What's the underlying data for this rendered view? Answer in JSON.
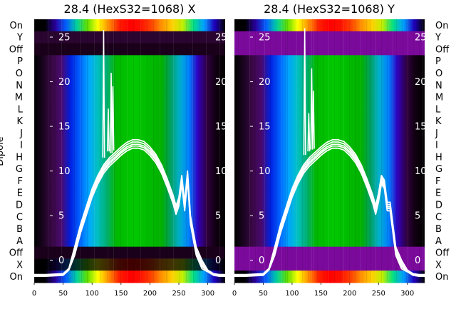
{
  "figure": {
    "ylabel": "Dipole",
    "panels": [
      {
        "title": "28.4 (HexS32=1068) X",
        "variant": "X"
      },
      {
        "title": "28.4 (HexS32=1068) Y",
        "variant": "Y"
      }
    ]
  },
  "chart_data": [
    {
      "type": "heatmap",
      "title": "28.4 (HexS32=1068) X",
      "ylabel": "Dipole",
      "row_labels": [
        "On",
        "Y",
        "Off",
        "P",
        "O",
        "N",
        "M",
        "L",
        "K",
        "J",
        "I",
        "H",
        "G",
        "F",
        "E",
        "D",
        "C",
        "B",
        "A",
        "Off",
        "X",
        "On"
      ],
      "x_ticks": [
        0,
        50,
        100,
        150,
        200,
        250,
        300
      ],
      "xlim": [
        0,
        330
      ],
      "overlay_line": {
        "y_ticks": [
          0,
          5,
          10,
          15,
          20,
          25
        ],
        "ylim": [
          -2.5,
          27
        ],
        "x": [
          0,
          20,
          50,
          60,
          70,
          80,
          90,
          100,
          110,
          120,
          130,
          140,
          150,
          160,
          170,
          180,
          190,
          200,
          210,
          220,
          230,
          240,
          245,
          250,
          255,
          260,
          265,
          270,
          280,
          290,
          300,
          310,
          320,
          330
        ],
        "y": [
          -1.7,
          -1.7,
          -1.6,
          -1.0,
          1.0,
          3.5,
          5.5,
          7.5,
          9.0,
          10.2,
          11.0,
          11.6,
          12.2,
          12.7,
          13.0,
          13.0,
          12.8,
          12.2,
          11.4,
          10.2,
          8.6,
          6.8,
          5.6,
          6.5,
          9.0,
          6.0,
          9.5,
          4.5,
          1.0,
          -0.5,
          -1.2,
          -1.6,
          -1.7,
          -1.7
        ]
      }
    },
    {
      "type": "heatmap",
      "title": "28.4 (HexS32=1068) Y",
      "row_labels": [
        "On",
        "Y",
        "Off",
        "P",
        "O",
        "N",
        "M",
        "L",
        "K",
        "J",
        "I",
        "H",
        "G",
        "F",
        "E",
        "D",
        "C",
        "B",
        "A",
        "Off",
        "X",
        "On"
      ],
      "x_ticks": [
        0,
        50,
        100,
        150,
        200,
        250,
        300
      ],
      "xlim": [
        0,
        330
      ],
      "overlay_line": {
        "y_ticks": [
          0,
          5,
          10,
          15,
          20,
          25
        ],
        "ylim": [
          -2.5,
          27
        ],
        "x": [
          0,
          20,
          50,
          60,
          70,
          80,
          90,
          100,
          110,
          120,
          130,
          140,
          150,
          160,
          170,
          180,
          190,
          200,
          210,
          220,
          230,
          240,
          245,
          250,
          255,
          260,
          265,
          270,
          280,
          290,
          300,
          310,
          320,
          330
        ],
        "y": [
          -1.7,
          -1.7,
          -1.6,
          -1.0,
          1.0,
          3.5,
          5.5,
          7.5,
          9.0,
          10.2,
          11.0,
          11.6,
          12.2,
          12.7,
          13.0,
          13.0,
          12.8,
          12.2,
          11.4,
          10.2,
          8.6,
          6.8,
          5.6,
          7.0,
          9.0,
          8.5,
          6.0,
          6.0,
          1.0,
          -0.5,
          -1.2,
          -1.6,
          -1.7,
          -1.7
        ]
      }
    }
  ],
  "colors": {
    "ramp": [
      "#000000",
      "#2a0a2e",
      "#5a0a6a",
      "#7a0a9a",
      "#2a00d0",
      "#0050ff",
      "#00a0ff",
      "#00c8c0",
      "#00b860",
      "#00c000",
      "#30d000",
      "#a0e000",
      "#ffff00",
      "#ffb000",
      "#ff5000",
      "#ff1000",
      "#ffffff"
    ],
    "band_purple": "#7b0a9c",
    "line": "#ffffff",
    "text": "#000000"
  }
}
